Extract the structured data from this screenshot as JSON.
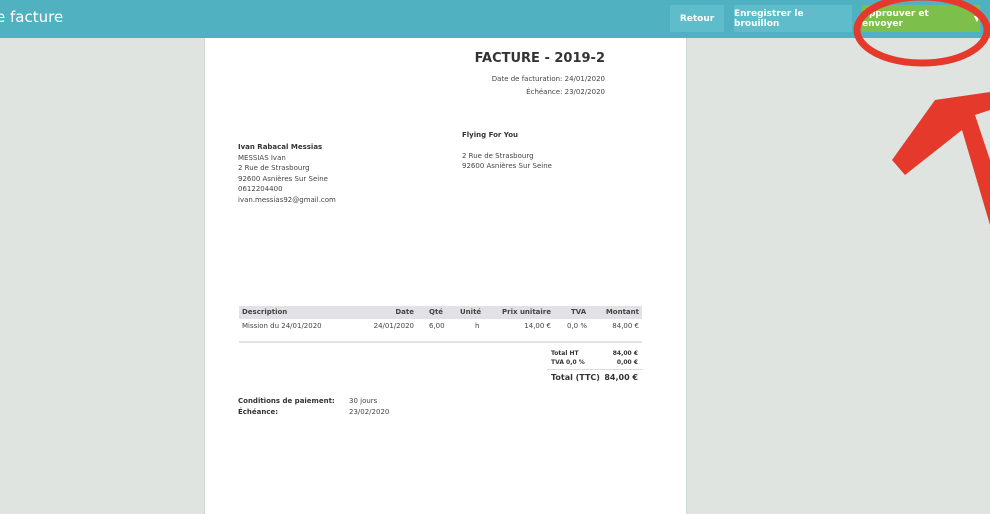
{
  "header": {
    "title": "e facture",
    "buttons": {
      "back": "Retour",
      "save_draft": "Enregistrer le brouillon",
      "approve": "Approuver et envoyer"
    },
    "dropdown_icon": "caret-down-icon"
  },
  "invoice": {
    "title": "FACTURE - 2019-2",
    "invoice_date": "Date de facturation: 24/01/2020",
    "due_date": "Échéance: 23/02/2020",
    "sender": {
      "name": "Ivan Rabacal Messias",
      "lines": [
        "MESSIAS Ivan",
        "2 Rue de Strasbourg",
        "92600 Asnières Sur Seine",
        "0612204400",
        "ivan.messias92@gmail.com"
      ]
    },
    "recipient": {
      "name": "Flying For You",
      "lines": [
        "2 Rue de Strasbourg",
        "92600 Asnières Sur Seine"
      ]
    },
    "table": {
      "headers": [
        "Description",
        "Date",
        "Qté",
        "Unité",
        "Prix unitaire",
        "TVA",
        "Montant"
      ],
      "rows": [
        [
          "Mission du 24/01/2020",
          "24/01/2020",
          "6,00",
          "h",
          "14,00 €",
          "0,0 %",
          "84,00 €"
        ]
      ]
    },
    "totals": {
      "ht_label": "Total HT",
      "ht": "84,00 €",
      "tva_label": "TVA 0,0 %",
      "tva": "0,00 €",
      "ttc_label": "Total (TTC)",
      "ttc": "84,00 €"
    },
    "payment": {
      "conditions_label": "Conditions de paiement:",
      "conditions": "30 jours",
      "due_label": "Échéance:",
      "due": "23/02/2020"
    }
  },
  "colors": {
    "header": "#50b1c1",
    "approve": "#7cc04b",
    "annotation": "#e53a2b"
  }
}
